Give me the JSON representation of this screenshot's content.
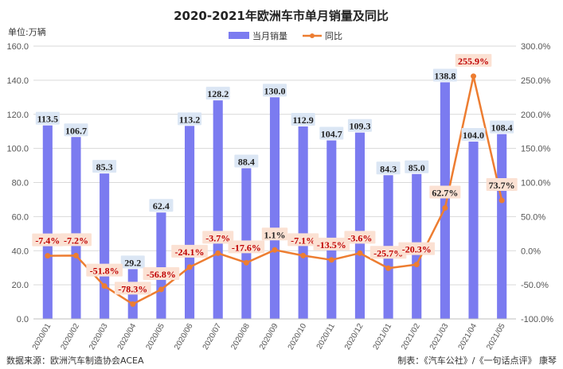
{
  "chart_data": {
    "type": "bar",
    "title": "2020-2021年欧洲车市单月销量及同比",
    "unit_label": "单位:万辆",
    "categories": [
      "2020/01",
      "2020/02",
      "2020/03",
      "2020/04",
      "2020/05",
      "2020/06",
      "2020/07",
      "2020/08",
      "2020/09",
      "2020/10",
      "2020/11",
      "2020/12",
      "2021/01",
      "2021/02",
      "2021/03",
      "2021/04",
      "2021/05"
    ],
    "series": [
      {
        "name": "当月销量",
        "kind": "bar",
        "axis": "left",
        "color": "#7b7bf0",
        "values": [
          113.5,
          106.7,
          85.3,
          29.2,
          62.4,
          113.2,
          128.2,
          88.4,
          130.0,
          112.9,
          104.7,
          109.3,
          84.3,
          85.0,
          138.8,
          104.0,
          108.4
        ],
        "labels": [
          "113.5",
          "106.7",
          "85.3",
          "29.2",
          "62.4",
          "113.2",
          "128.2",
          "88.4",
          "130.0",
          "112.9",
          "104.7",
          "109.3",
          "84.3",
          "85.0",
          "138.8",
          "104.0",
          "108.4"
        ]
      },
      {
        "name": "同比",
        "kind": "line",
        "axis": "right",
        "color": "#ed7d31",
        "values": [
          -7.4,
          -7.2,
          -51.8,
          -78.3,
          -56.8,
          -24.1,
          -3.7,
          -17.6,
          1.1,
          -7.1,
          -13.5,
          -3.6,
          -25.7,
          -20.3,
          62.7,
          255.9,
          73.7
        ],
        "labels": [
          "-7.4%",
          "-7.2%",
          "-51.8%",
          "-78.3%",
          "-56.8%",
          "-24.1%",
          "-3.7%",
          "-17.6%",
          "1.1%",
          "-7.1%",
          "-13.5%",
          "-3.6%",
          "-25.7%",
          "-20.3%",
          "62.7%",
          "255.9%",
          "73.7%"
        ]
      }
    ],
    "y_left": {
      "ylim": [
        0,
        160
      ],
      "ticks": [
        0,
        20,
        40,
        60,
        80,
        100,
        120,
        140,
        160
      ],
      "tick_labels": [
        "0.0",
        "20.0",
        "40.0",
        "60.0",
        "80.0",
        "100.0",
        "120.0",
        "140.0",
        "160.0"
      ]
    },
    "y_right": {
      "ylim": [
        -100,
        300
      ],
      "ticks": [
        -100,
        -50,
        0,
        50,
        100,
        150,
        200,
        250,
        300
      ],
      "tick_labels": [
        "-100.0%",
        "-50.0%",
        "0.0%",
        "50.0%",
        "100.0%",
        "150.0%",
        "200.0%",
        "250.0%",
        "300.0%"
      ]
    },
    "grid": true,
    "legend_position": "top-center"
  },
  "footer": {
    "source": "数据来源：欧洲汽车制造协会ACEA",
    "credit": "制表：《汽车公社》/《一句话点评》 康琴"
  },
  "colors": {
    "label_box": "#dbe6f4",
    "yoy_box": "#fbe1d3",
    "grid": "#d9d9d9"
  }
}
